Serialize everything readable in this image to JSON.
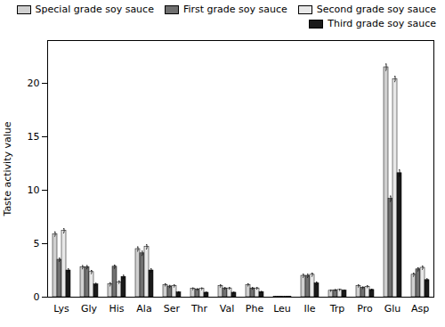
{
  "chart_data": {
    "type": "bar",
    "categories": [
      "Lys",
      "Gly",
      "His",
      "Ala",
      "Ser",
      "Thr",
      "Val",
      "Phe",
      "Leu",
      "Ile",
      "Trp",
      "Pro",
      "Glu",
      "Asp"
    ],
    "series": [
      {
        "name": "Special grade soy sauce",
        "color": "#d0d0d0",
        "values": [
          5.9,
          2.8,
          1.2,
          4.5,
          1.15,
          0.78,
          1.05,
          1.15,
          0.04,
          2.0,
          0.6,
          1.05,
          21.5,
          2.1
        ],
        "errors": [
          0.2,
          0.15,
          0.15,
          0.2,
          0.1,
          0.08,
          0.1,
          0.1,
          0.02,
          0.15,
          0.06,
          0.1,
          0.3,
          0.15
        ]
      },
      {
        "name": "First grade soy sauce",
        "color": "#707070",
        "values": [
          3.5,
          2.8,
          2.85,
          4.1,
          1.0,
          0.72,
          0.82,
          0.82,
          0.04,
          2.0,
          0.65,
          0.88,
          9.2,
          2.6
        ],
        "errors": [
          0.15,
          0.15,
          0.15,
          0.2,
          0.1,
          0.07,
          0.08,
          0.08,
          0.02,
          0.15,
          0.06,
          0.08,
          0.25,
          0.15
        ]
      },
      {
        "name": "Second grade soy sauce",
        "color": "#e8e8e8",
        "values": [
          6.2,
          2.35,
          1.4,
          4.7,
          1.05,
          0.78,
          0.82,
          0.82,
          0.04,
          2.1,
          0.68,
          0.98,
          20.4,
          2.75
        ],
        "errors": [
          0.2,
          0.15,
          0.12,
          0.2,
          0.1,
          0.08,
          0.08,
          0.08,
          0.02,
          0.15,
          0.06,
          0.09,
          0.25,
          0.15
        ]
      },
      {
        "name": "Third grade soy sauce",
        "color": "#1a1a1a",
        "values": [
          2.5,
          1.2,
          1.9,
          2.5,
          0.45,
          0.42,
          0.42,
          0.48,
          0.04,
          1.3,
          0.62,
          0.68,
          11.6,
          1.6
        ],
        "errors": [
          0.15,
          0.1,
          0.15,
          0.15,
          0.06,
          0.05,
          0.05,
          0.06,
          0.02,
          0.12,
          0.05,
          0.07,
          0.3,
          0.12
        ]
      }
    ],
    "ylabel": "Taste activity value",
    "ylim": [
      0,
      24
    ],
    "yticks": [
      0,
      5,
      10,
      15,
      20
    ],
    "legend": "upper right"
  }
}
